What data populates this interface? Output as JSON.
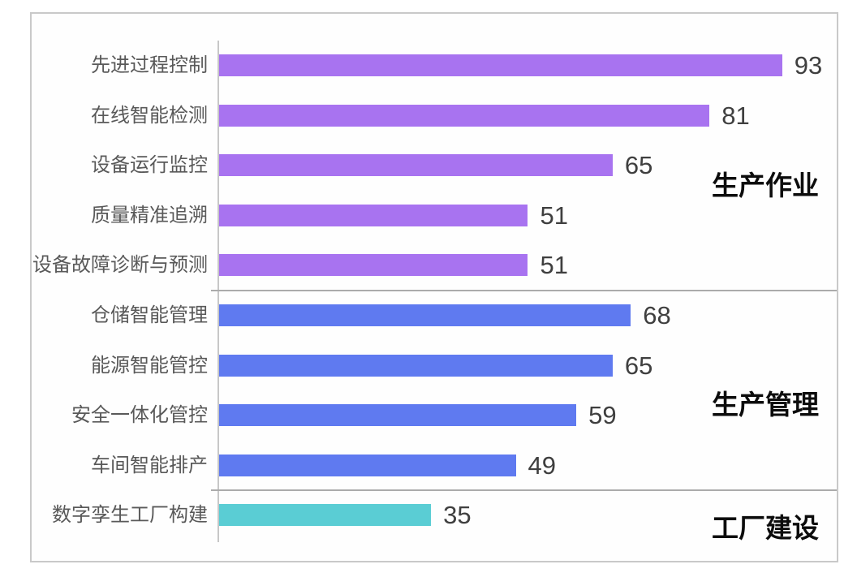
{
  "chart_data": {
    "type": "bar",
    "orientation": "horizontal",
    "title": "",
    "xlabel": "",
    "ylabel": "",
    "value_range": [
      0,
      100
    ],
    "grid": false,
    "legend": "none",
    "group_label_position": "right",
    "groups": [
      {
        "name": "生产作业",
        "color": "#a873f0",
        "items": [
          {
            "label": "先进过程控制",
            "value": 93
          },
          {
            "label": "在线智能检测",
            "value": 81
          },
          {
            "label": "设备运行监控",
            "value": 65
          },
          {
            "label": "质量精准追溯",
            "value": 51
          },
          {
            "label": "设备故障诊断与预测",
            "value": 51
          }
        ]
      },
      {
        "name": "生产管理",
        "color": "#5f7af0",
        "items": [
          {
            "label": "仓储智能管理",
            "value": 68
          },
          {
            "label": "能源智能管控",
            "value": 65
          },
          {
            "label": "安全一体化管控",
            "value": 59
          },
          {
            "label": "车间智能排产",
            "value": 49
          }
        ]
      },
      {
        "name": "工厂建设",
        "color": "#5acdd4",
        "items": [
          {
            "label": "数字孪生工厂构建",
            "value": 35
          }
        ]
      }
    ],
    "colors": {
      "category_text": "#595959",
      "value_text": "#3f3f3f",
      "group_text": "#0c0c0c",
      "axis_line": "#c7c7c7",
      "divider_line": "#ababab",
      "frame_border": "#c9c9c9"
    }
  }
}
